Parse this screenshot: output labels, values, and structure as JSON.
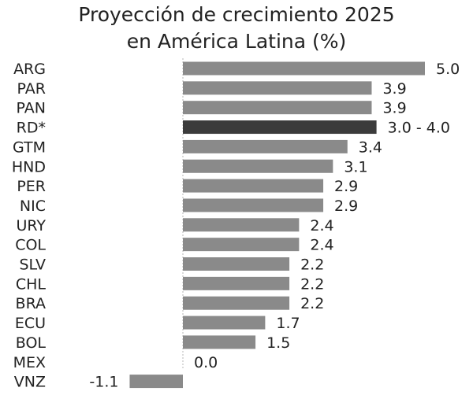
{
  "chart_data": {
    "type": "bar",
    "orientation": "horizontal",
    "title": [
      "Proyección de crecimiento 2025",
      "en América Latina (%)"
    ],
    "categories": [
      "ARG",
      "PAR",
      "PAN",
      "RD*",
      "GTM",
      "HND",
      "PER",
      "NIC",
      "URY",
      "COL",
      "SLV",
      "CHL",
      "BRA",
      "ECU",
      "BOL",
      "MEX",
      "VNZ"
    ],
    "values": [
      5.0,
      3.9,
      3.9,
      4.0,
      3.4,
      3.1,
      2.9,
      2.9,
      2.4,
      2.4,
      2.2,
      2.2,
      2.2,
      1.7,
      1.5,
      0.0,
      -1.1
    ],
    "range_low": [
      null,
      null,
      null,
      3.0,
      null,
      null,
      null,
      null,
      null,
      null,
      null,
      null,
      null,
      null,
      null,
      null,
      null
    ],
    "value_labels": [
      "5.0",
      "3.9",
      "3.9",
      "3.0 - 4.0",
      "3.4",
      "3.1",
      "2.9",
      "2.9",
      "2.4",
      "2.4",
      "2.2",
      "2.2",
      "2.2",
      "1.7",
      "1.5",
      "0.0",
      "-1.1"
    ],
    "highlight_index": 3,
    "colors": {
      "bar": "#8a8a8a",
      "highlight": "#3b3b3b",
      "axis": "#cfcfcf",
      "text": "#222222"
    },
    "xlim": [
      -1.1,
      5.0
    ],
    "grid": false,
    "legend": "none"
  }
}
